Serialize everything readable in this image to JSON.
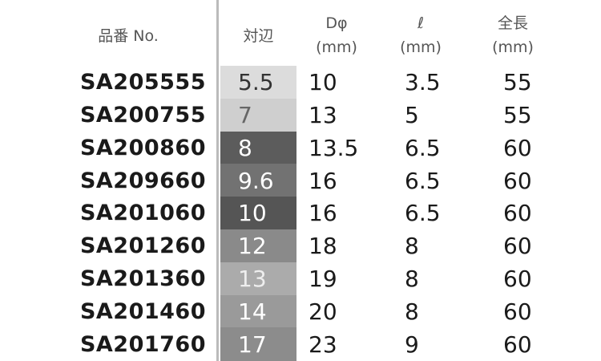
{
  "header": {
    "product": "品番 No.",
    "size": "対辺",
    "diameter": [
      "Dφ",
      "(mm)"
    ],
    "l": [
      "ℓ",
      "(mm)"
    ],
    "length": [
      "全長",
      "(mm)"
    ]
  },
  "rows": [
    [
      "SA205555",
      "5.5",
      "10",
      "3.5",
      "55"
    ],
    [
      "SA200755",
      "7",
      "13",
      "5",
      "55"
    ],
    [
      "SA200860",
      "8",
      "13.5",
      "6.5",
      "60"
    ],
    [
      "SA209660",
      "9.6",
      "16",
      "6.5",
      "60"
    ],
    [
      "SA201060",
      "10",
      "16",
      "6.5",
      "60"
    ],
    [
      "SA201260",
      "12",
      "18",
      "8",
      "60"
    ],
    [
      "SA201360",
      "13",
      "19",
      "8",
      "60"
    ],
    [
      "SA201460",
      "14",
      "20",
      "8",
      "60"
    ],
    [
      "SA201760",
      "17",
      "23",
      "9",
      "60"
    ]
  ]
}
